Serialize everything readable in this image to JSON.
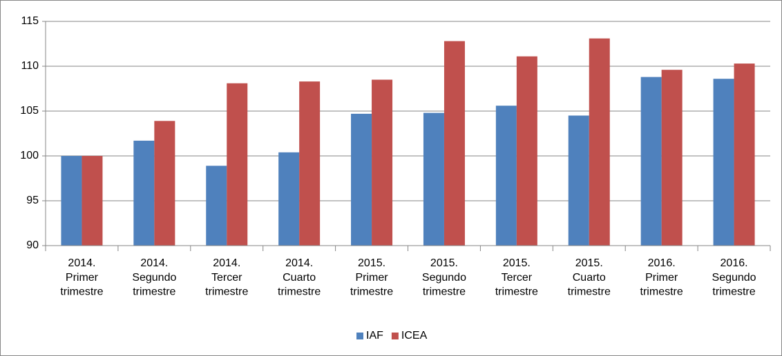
{
  "chart_data": {
    "type": "bar",
    "categories": [
      "2014.\nPrimer\ntrimestre",
      "2014.\nSegundo\ntrimestre",
      "2014.\nTercer\ntrimestre",
      "2014.\nCuarto\ntrimestre",
      "2015.\nPrimer\ntrimestre",
      "2015.\nSegundo\ntrimestre",
      "2015.\nTercer\ntrimestre",
      "2015.\nCuarto\ntrimestre",
      "2016.\nPrimer\ntrimestre",
      "2016.\nSegundo\ntrimestre"
    ],
    "series": [
      {
        "name": "IAF",
        "color": "#4f81bd",
        "values": [
          100,
          101.7,
          98.9,
          100.4,
          104.7,
          104.8,
          105.6,
          104.5,
          108.8,
          108.6
        ]
      },
      {
        "name": "ICEA",
        "color": "#c0504d",
        "values": [
          100,
          103.9,
          108.1,
          108.3,
          108.5,
          112.8,
          111.1,
          113.1,
          109.6,
          110.3
        ]
      }
    ],
    "ylim": [
      90,
      115
    ],
    "yticks": [
      90,
      95,
      100,
      105,
      110,
      115
    ],
    "grid": true,
    "legend": "bottom"
  }
}
